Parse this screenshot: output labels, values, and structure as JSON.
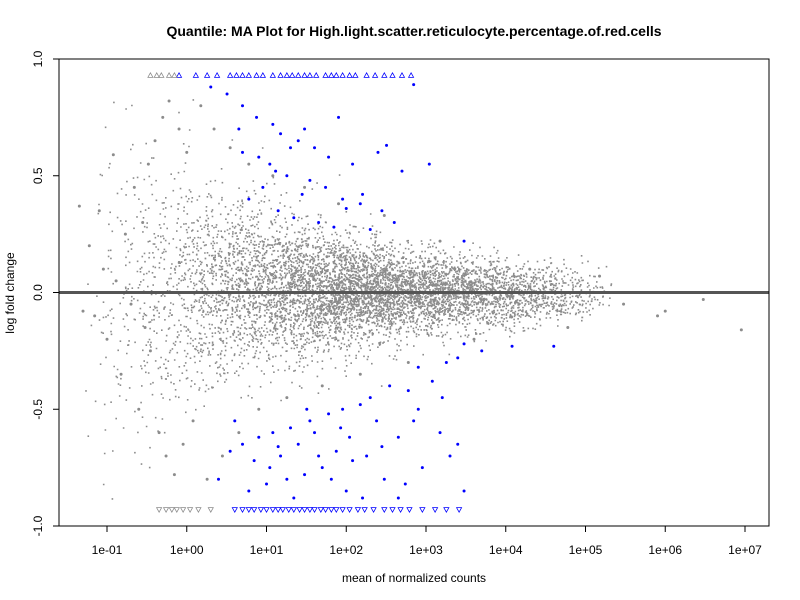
{
  "chart_data": {
    "type": "scatter",
    "title": "Quantile: MA Plot for High.light.scatter.reticulocyte.percentage.of.red.cells",
    "xlabel": "mean of normalized counts",
    "ylabel": "log fold change",
    "x_scale": "log10",
    "xlim": [
      0.025,
      20000000
    ],
    "ylim": [
      -1.0,
      1.0
    ],
    "x_ticks": [
      {
        "value": 0.1,
        "label": "1e-01"
      },
      {
        "value": 1,
        "label": "1e+00"
      },
      {
        "value": 10,
        "label": "1e+01"
      },
      {
        "value": 100,
        "label": "1e+02"
      },
      {
        "value": 1000,
        "label": "1e+03"
      },
      {
        "value": 10000,
        "label": "1e+04"
      },
      {
        "value": 100000,
        "label": "1e+05"
      },
      {
        "value": 1000000,
        "label": "1e+06"
      },
      {
        "value": 10000000,
        "label": "1e+07"
      }
    ],
    "y_ticks": [
      {
        "value": -1.0,
        "label": "-1.0"
      },
      {
        "value": -0.5,
        "label": "-0.5"
      },
      {
        "value": 0.0,
        "label": "0.0"
      },
      {
        "value": 0.5,
        "label": "0.5"
      },
      {
        "value": 1.0,
        "label": "1.0"
      }
    ],
    "reference_line": {
      "y": 0,
      "color": "#555555"
    },
    "colors": {
      "not_significant": "#8c8c8c",
      "significant": "#0000ff"
    },
    "grid": false,
    "legend": "none",
    "series": [
      {
        "color": "#0000ff",
        "marker": "point",
        "points": [
          [
            2.0,
            0.88
          ],
          [
            3.2,
            0.85
          ],
          [
            5.0,
            0.8
          ],
          [
            7.5,
            0.75
          ],
          [
            4.5,
            0.7
          ],
          [
            12,
            0.72
          ],
          [
            15,
            0.68
          ],
          [
            25,
            0.65
          ],
          [
            30,
            0.7
          ],
          [
            40,
            0.62
          ],
          [
            60,
            0.58
          ],
          [
            80,
            0.75
          ],
          [
            120,
            0.55
          ],
          [
            250,
            0.6
          ],
          [
            320,
            0.63
          ],
          [
            1100,
            0.55
          ],
          [
            700,
            0.89
          ],
          [
            8,
            0.58
          ],
          [
            11,
            0.55
          ],
          [
            18,
            0.5
          ],
          [
            9,
            0.45
          ],
          [
            35,
            0.48
          ],
          [
            55,
            0.45
          ],
          [
            90,
            0.4
          ],
          [
            150,
            0.38
          ],
          [
            280,
            0.35
          ],
          [
            500,
            0.52
          ],
          [
            6,
            0.4
          ],
          [
            14,
            0.35
          ],
          [
            22,
            0.32
          ],
          [
            45,
            0.3
          ],
          [
            70,
            0.28
          ],
          [
            200,
            0.27
          ],
          [
            400,
            0.3
          ],
          [
            3000,
            0.22
          ],
          [
            5,
            0.6
          ],
          [
            20,
            0.62
          ],
          [
            100,
            0.36
          ],
          [
            160,
            0.42
          ],
          [
            28,
            0.42
          ],
          [
            13,
            0.52
          ],
          [
            3000,
            -0.22
          ],
          [
            5000,
            -0.25
          ],
          [
            12000,
            -0.23
          ],
          [
            2500,
            -0.28
          ],
          [
            1800,
            -0.3
          ],
          [
            800,
            -0.32
          ],
          [
            40000,
            -0.23
          ],
          [
            1200,
            -0.38
          ],
          [
            600,
            -0.42
          ],
          [
            350,
            -0.4
          ],
          [
            200,
            -0.45
          ],
          [
            150,
            -0.48
          ],
          [
            90,
            -0.5
          ],
          [
            60,
            -0.52
          ],
          [
            35,
            -0.55
          ],
          [
            20,
            -0.58
          ],
          [
            12,
            -0.6
          ],
          [
            8,
            -0.62
          ],
          [
            5,
            -0.65
          ],
          [
            3.5,
            -0.68
          ],
          [
            2500,
            -0.65
          ],
          [
            1500,
            -0.6
          ],
          [
            700,
            -0.55
          ],
          [
            450,
            -0.62
          ],
          [
            280,
            -0.66
          ],
          [
            180,
            -0.7
          ],
          [
            120,
            -0.72
          ],
          [
            75,
            -0.68
          ],
          [
            50,
            -0.75
          ],
          [
            30,
            -0.78
          ],
          [
            18,
            -0.8
          ],
          [
            10,
            -0.82
          ],
          [
            6,
            -0.85
          ],
          [
            2.5,
            -0.8
          ],
          [
            4,
            -0.55
          ],
          [
            15,
            -0.7
          ],
          [
            25,
            -0.65
          ],
          [
            40,
            -0.6
          ],
          [
            65,
            -0.8
          ],
          [
            100,
            -0.85
          ],
          [
            300,
            -0.8
          ],
          [
            550,
            -0.82
          ],
          [
            900,
            -0.75
          ],
          [
            2000,
            -0.7
          ],
          [
            3000,
            -0.85
          ],
          [
            450,
            -0.88
          ],
          [
            160,
            -0.88
          ],
          [
            22,
            -0.88
          ],
          [
            11,
            -0.75
          ],
          [
            7,
            -0.72
          ],
          [
            32,
            -0.5
          ],
          [
            85,
            -0.58
          ],
          [
            240,
            -0.55
          ],
          [
            1600,
            -0.45
          ],
          [
            800,
            -0.5
          ],
          [
            110,
            -0.62
          ],
          [
            45,
            -0.7
          ],
          [
            14,
            -0.66
          ]
        ]
      },
      {
        "color": "#0000ff",
        "marker": "triangle-up",
        "points": [
          [
            0.8,
            0.93
          ],
          [
            1.3,
            0.93
          ],
          [
            1.8,
            0.93
          ],
          [
            2.4,
            0.93
          ],
          [
            3.5,
            0.93
          ],
          [
            4.2,
            0.93
          ],
          [
            5.0,
            0.93
          ],
          [
            6.0,
            0.93
          ],
          [
            7.5,
            0.93
          ],
          [
            9.0,
            0.93
          ],
          [
            12,
            0.93
          ],
          [
            15,
            0.93
          ],
          [
            18,
            0.93
          ],
          [
            21,
            0.93
          ],
          [
            25,
            0.93
          ],
          [
            30,
            0.93
          ],
          [
            35,
            0.93
          ],
          [
            42,
            0.93
          ],
          [
            55,
            0.93
          ],
          [
            65,
            0.93
          ],
          [
            75,
            0.93
          ],
          [
            90,
            0.93
          ],
          [
            110,
            0.93
          ],
          [
            130,
            0.93
          ],
          [
            180,
            0.93
          ],
          [
            230,
            0.93
          ],
          [
            300,
            0.93
          ],
          [
            380,
            0.93
          ],
          [
            500,
            0.93
          ],
          [
            650,
            0.93
          ]
        ]
      },
      {
        "color": "#0000ff",
        "marker": "triangle-down",
        "points": [
          [
            4.0,
            -0.93
          ],
          [
            5.0,
            -0.93
          ],
          [
            6.0,
            -0.93
          ],
          [
            7.0,
            -0.93
          ],
          [
            8.5,
            -0.93
          ],
          [
            10,
            -0.93
          ],
          [
            12,
            -0.93
          ],
          [
            14,
            -0.93
          ],
          [
            16,
            -0.93
          ],
          [
            19,
            -0.93
          ],
          [
            22,
            -0.93
          ],
          [
            26,
            -0.93
          ],
          [
            30,
            -0.93
          ],
          [
            35,
            -0.93
          ],
          [
            40,
            -0.93
          ],
          [
            48,
            -0.93
          ],
          [
            55,
            -0.93
          ],
          [
            65,
            -0.93
          ],
          [
            75,
            -0.93
          ],
          [
            90,
            -0.93
          ],
          [
            110,
            -0.93
          ],
          [
            140,
            -0.93
          ],
          [
            170,
            -0.93
          ],
          [
            220,
            -0.93
          ],
          [
            300,
            -0.93
          ],
          [
            380,
            -0.93
          ],
          [
            480,
            -0.93
          ],
          [
            620,
            -0.93
          ],
          [
            900,
            -0.93
          ],
          [
            1300,
            -0.93
          ],
          [
            1800,
            -0.93
          ],
          [
            2600,
            -0.93
          ]
        ]
      },
      {
        "color": "#8c8c8c",
        "marker": "triangle-up",
        "points": [
          [
            0.35,
            0.93
          ],
          [
            0.42,
            0.93
          ],
          [
            0.48,
            0.93
          ],
          [
            0.6,
            0.93
          ],
          [
            0.7,
            0.93
          ]
        ]
      },
      {
        "color": "#8c8c8c",
        "marker": "triangle-down",
        "points": [
          [
            0.45,
            -0.93
          ],
          [
            0.55,
            -0.93
          ],
          [
            0.65,
            -0.93
          ],
          [
            0.75,
            -0.93
          ],
          [
            0.9,
            -0.93
          ],
          [
            1.1,
            -0.93
          ],
          [
            1.4,
            -0.93
          ],
          [
            2.0,
            -0.93
          ]
        ]
      },
      {
        "color": "#8c8c8c",
        "marker": "point",
        "points": [
          [
            0.045,
            0.37
          ],
          [
            0.05,
            -0.08
          ],
          [
            0.06,
            0.2
          ],
          [
            0.07,
            -0.1
          ],
          [
            0.08,
            0.35
          ],
          [
            0.09,
            0.1
          ],
          [
            0.1,
            -0.2
          ],
          [
            0.12,
            0.59
          ],
          [
            0.13,
            0.05
          ],
          [
            0.15,
            -0.35
          ],
          [
            0.17,
            0.25
          ],
          [
            0.2,
            -0.05
          ],
          [
            0.22,
            0.45
          ],
          [
            0.25,
            -0.5
          ],
          [
            0.28,
            0.3
          ],
          [
            0.3,
            -0.15
          ],
          [
            0.33,
            0.55
          ],
          [
            0.35,
            -0.25
          ],
          [
            0.4,
            0.65
          ],
          [
            0.45,
            -0.6
          ],
          [
            0.5,
            0.75
          ],
          [
            0.55,
            -0.7
          ],
          [
            0.6,
            0.82
          ],
          [
            0.7,
            -0.78
          ],
          [
            0.8,
            0.7
          ],
          [
            0.9,
            -0.65
          ],
          [
            1.0,
            0.6
          ],
          [
            1.2,
            -0.55
          ],
          [
            1.5,
            0.8
          ],
          [
            1.8,
            -0.8
          ],
          [
            2.2,
            0.7
          ],
          [
            2.8,
            -0.7
          ],
          [
            3.5,
            0.62
          ],
          [
            4.5,
            -0.6
          ],
          [
            6,
            0.55
          ],
          [
            8,
            -0.5
          ],
          [
            12,
            0.5
          ],
          [
            18,
            -0.45
          ],
          [
            30,
            0.45
          ],
          [
            50,
            -0.4
          ],
          [
            80,
            0.38
          ],
          [
            150,
            -0.35
          ],
          [
            300,
            0.33
          ],
          [
            600,
            -0.3
          ],
          [
            1500,
            0.22
          ],
          [
            4000,
            -0.2
          ],
          [
            20000,
            0.1
          ],
          [
            60000,
            -0.15
          ],
          [
            150000,
            0.07
          ],
          [
            300000,
            -0.05
          ],
          [
            500000,
            0.0
          ],
          [
            800000,
            -0.1
          ],
          [
            1000000,
            -0.08
          ],
          [
            3000000,
            -0.03
          ],
          [
            9000000,
            -0.16
          ]
        ]
      }
    ]
  }
}
